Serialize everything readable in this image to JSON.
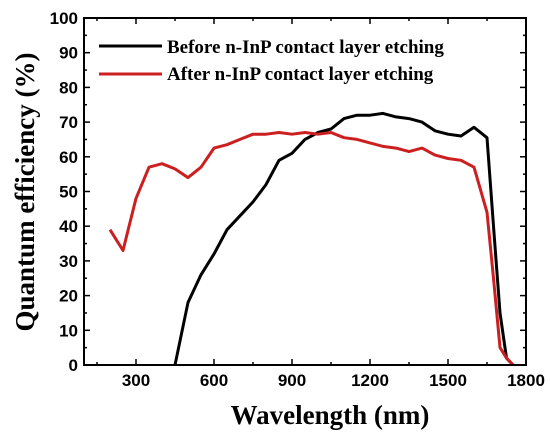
{
  "chart_data": {
    "type": "line",
    "title": "",
    "xlabel": "Wavelength (nm)",
    "ylabel": "Quantum efficiency (%)",
    "xlim": [
      100,
      1800
    ],
    "ylim": [
      0,
      100
    ],
    "xticks": [
      300,
      600,
      900,
      1200,
      1500,
      1800
    ],
    "yticks": [
      0,
      10,
      20,
      30,
      40,
      50,
      60,
      70,
      80,
      90,
      100
    ],
    "grid": false,
    "legend_position": "top-right",
    "series": [
      {
        "name": "Before n-InP contact layer etching",
        "color": "#000000",
        "points": [
          [
            450,
            0
          ],
          [
            500,
            18
          ],
          [
            550,
            26
          ],
          [
            600,
            32
          ],
          [
            650,
            39
          ],
          [
            700,
            43
          ],
          [
            750,
            47
          ],
          [
            800,
            52
          ],
          [
            850,
            59
          ],
          [
            900,
            61
          ],
          [
            950,
            65
          ],
          [
            1000,
            67
          ],
          [
            1050,
            68
          ],
          [
            1100,
            71
          ],
          [
            1150,
            72
          ],
          [
            1200,
            72
          ],
          [
            1250,
            72.5
          ],
          [
            1300,
            71.5
          ],
          [
            1350,
            71
          ],
          [
            1400,
            70
          ],
          [
            1450,
            67.5
          ],
          [
            1500,
            66.5
          ],
          [
            1550,
            66
          ],
          [
            1600,
            68.5
          ],
          [
            1650,
            65.5
          ],
          [
            1675,
            40
          ],
          [
            1700,
            15
          ],
          [
            1725,
            2
          ],
          [
            1750,
            0
          ]
        ]
      },
      {
        "name": "After n-InP contact layer etching",
        "color": "#cc1f1f",
        "points": [
          [
            200,
            39
          ],
          [
            250,
            33
          ],
          [
            300,
            48
          ],
          [
            350,
            57
          ],
          [
            400,
            58
          ],
          [
            450,
            56.5
          ],
          [
            500,
            54
          ],
          [
            550,
            57
          ],
          [
            600,
            62.5
          ],
          [
            650,
            63.5
          ],
          [
            700,
            65
          ],
          [
            750,
            66.5
          ],
          [
            800,
            66.5
          ],
          [
            850,
            67
          ],
          [
            900,
            66.5
          ],
          [
            950,
            67
          ],
          [
            1000,
            66.5
          ],
          [
            1050,
            67
          ],
          [
            1100,
            65.5
          ],
          [
            1150,
            65
          ],
          [
            1200,
            64
          ],
          [
            1250,
            63
          ],
          [
            1300,
            62.5
          ],
          [
            1350,
            61.5
          ],
          [
            1400,
            62.5
          ],
          [
            1450,
            60.5
          ],
          [
            1500,
            59.5
          ],
          [
            1550,
            59
          ],
          [
            1600,
            57
          ],
          [
            1650,
            44
          ],
          [
            1675,
            25
          ],
          [
            1700,
            5
          ],
          [
            1725,
            2
          ],
          [
            1750,
            0
          ]
        ]
      }
    ]
  }
}
